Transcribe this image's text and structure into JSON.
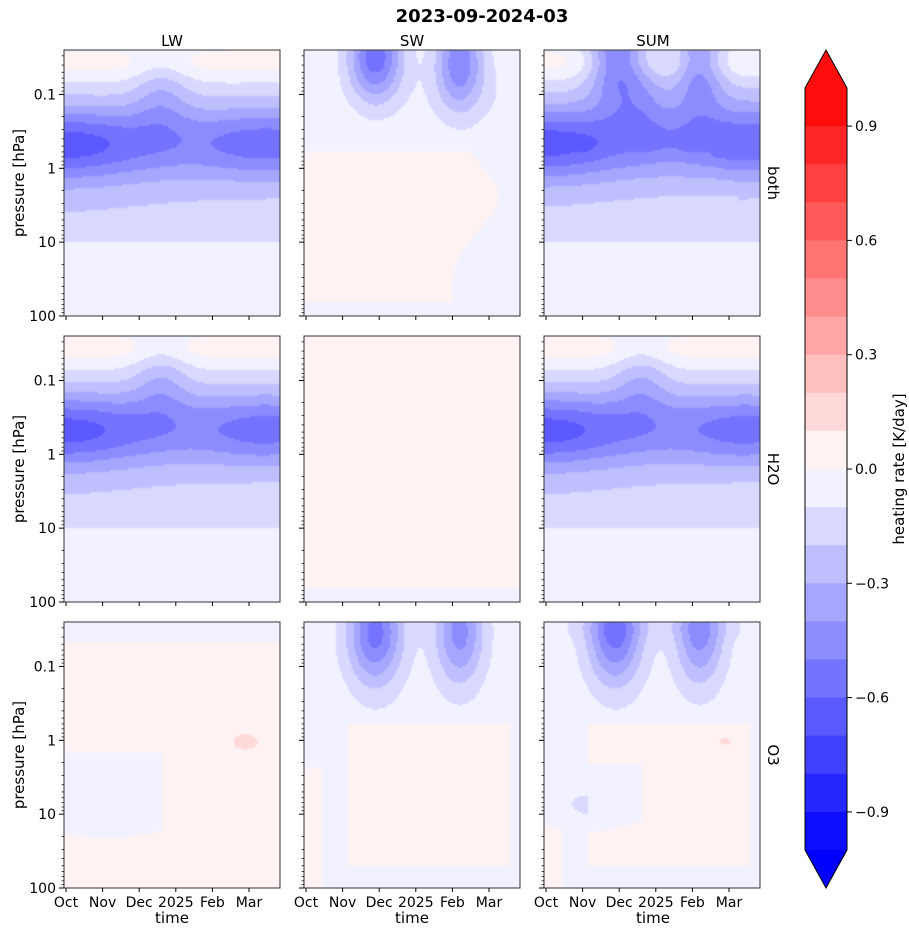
{
  "figure": {
    "title": "2023-09-2024-03",
    "column_titles": [
      "LW",
      "SW",
      "SUM"
    ],
    "row_labels": [
      "both",
      "H2O",
      "O3"
    ],
    "ylabel": "pressure [hPa]",
    "xlabel": "time"
  },
  "chart_data": {
    "type": "heatmap",
    "subtype": "filled-contour-grid",
    "title": "2023-09-2024-03",
    "x_ticks": [
      "Oct",
      "Nov",
      "Dec",
      "2025",
      "Feb",
      "Mar"
    ],
    "y_ticks": [
      "0.1",
      "1",
      "10",
      "100"
    ],
    "y_scale": "log",
    "y_inverted": true,
    "ylim": [
      100,
      0.025
    ],
    "xlabel": "time",
    "ylabel": "pressure [hPa]",
    "colorbar": {
      "label": "heating rate [K/day]",
      "vmin": -1.0,
      "vmax": 1.0,
      "levels": 21,
      "extend": "both",
      "ticks": [
        "0.9",
        "0.6",
        "0.3",
        "0.0",
        "−0.3",
        "−0.6",
        "−0.9"
      ],
      "tick_values": [
        0.9,
        0.6,
        0.3,
        0.0,
        -0.3,
        -0.6,
        -0.9
      ],
      "colormap": "bwr"
    },
    "panels": [
      {
        "row": "both",
        "column": "LW",
        "approx_min": -0.6,
        "approx_max": 0.0
      },
      {
        "row": "both",
        "column": "SW",
        "approx_min": -0.5,
        "approx_max": 0.1
      },
      {
        "row": "both",
        "column": "SUM",
        "approx_min": -0.7,
        "approx_max": 0.0
      },
      {
        "row": "H2O",
        "column": "LW",
        "approx_min": -0.55,
        "approx_max": 0.0
      },
      {
        "row": "H2O",
        "column": "SW",
        "approx_min": 0.0,
        "approx_max": 0.1
      },
      {
        "row": "H2O",
        "column": "SUM",
        "approx_min": -0.55,
        "approx_max": 0.0
      },
      {
        "row": "O3",
        "column": "LW",
        "approx_min": 0.0,
        "approx_max": 0.2
      },
      {
        "row": "O3",
        "column": "SW",
        "approx_min": -0.5,
        "approx_max": 0.1
      },
      {
        "row": "O3",
        "column": "SUM",
        "approx_min": -0.5,
        "approx_max": 0.1
      }
    ]
  }
}
